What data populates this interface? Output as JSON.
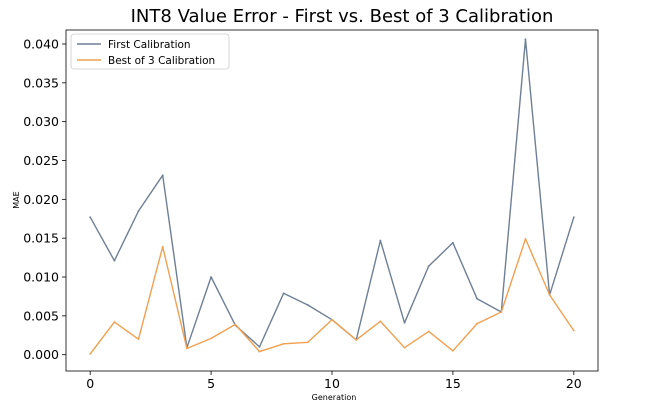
{
  "chart_data": {
    "type": "line",
    "title": "INT8 Value Error - First vs. Best of 3 Calibration",
    "xlabel": "Generation",
    "ylabel": "MAE",
    "xlim": [
      -1,
      21
    ],
    "ylim": [
      -0.0021,
      0.0418
    ],
    "xticks": [
      0,
      5,
      10,
      15,
      20
    ],
    "yticks": [
      0.0,
      0.005,
      0.01,
      0.015,
      0.02,
      0.025,
      0.03,
      0.035,
      0.04
    ],
    "ytick_labels": [
      "0.000",
      "0.005",
      "0.010",
      "0.015",
      "0.020",
      "0.025",
      "0.030",
      "0.035",
      "0.040"
    ],
    "grid": false,
    "legend_position": "top-left",
    "x": [
      0,
      1,
      2,
      3,
      4,
      5,
      6,
      7,
      8,
      9,
      10,
      11,
      12,
      13,
      14,
      15,
      16,
      17,
      18,
      19,
      20
    ],
    "series": [
      {
        "name": "First Calibration",
        "color": "#6e7f96",
        "values": [
          0.0177,
          0.0121,
          0.0185,
          0.0231,
          0.0009,
          0.01,
          0.0038,
          0.001,
          0.0079,
          0.0064,
          0.0045,
          0.0019,
          0.0147,
          0.0041,
          0.0114,
          0.0144,
          0.0072,
          0.0055,
          0.0406,
          0.0077,
          0.0177
        ]
      },
      {
        "name": "Best of 3 Calibration",
        "color": "#f0a050",
        "values": [
          0.0001,
          0.0042,
          0.002,
          0.0139,
          0.0008,
          0.0021,
          0.0039,
          0.0004,
          0.0014,
          0.0016,
          0.0045,
          0.0019,
          0.0043,
          0.0009,
          0.003,
          0.0005,
          0.004,
          0.0055,
          0.0149,
          0.0077,
          0.0031
        ]
      }
    ]
  }
}
